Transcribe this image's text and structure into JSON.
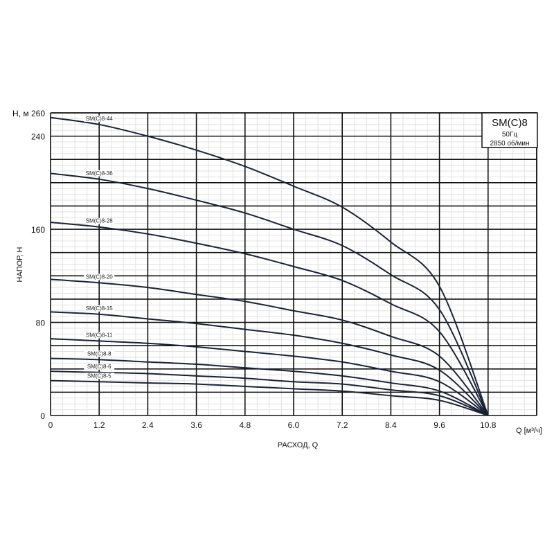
{
  "chart_data": {
    "type": "line",
    "title": "",
    "xlabel": "РАСХОД, Q",
    "xunit_label": "Q [м³/ч]",
    "ylabel": "НАПОР, Н",
    "yunit_label": "Н, м",
    "xlim": [
      0,
      12
    ],
    "ylim": [
      0,
      260
    ],
    "x_ticks": [
      "0",
      "1.2",
      "2.4",
      "3.6",
      "4.8",
      "6.0",
      "7.2",
      "8.4",
      "9.6",
      "10.8"
    ],
    "x_tick_values": [
      0,
      1.2,
      2.4,
      3.6,
      4.8,
      6.0,
      7.2,
      8.4,
      9.6,
      10.8
    ],
    "y_ticks": [
      "0",
      "80",
      "160",
      "240",
      "260"
    ],
    "y_tick_values": [
      0,
      80,
      160,
      240,
      260
    ],
    "grid": true,
    "line_color": "#1a2238",
    "legend_box": {
      "model": "SM(C)8",
      "frequency": "50Гц",
      "speed": "2850 об/мин",
      "placement": "top-right"
    },
    "x": [
      0,
      1.2,
      2.4,
      3.6,
      4.8,
      6.0,
      7.2,
      8.4,
      9.6,
      10.8
    ],
    "series": [
      {
        "name": "SM(C)8-44",
        "values": [
          256,
          250,
          240,
          228,
          214,
          197,
          179,
          149,
          111,
          0
        ]
      },
      {
        "name": "SM(C)8-36",
        "values": [
          208,
          203,
          195,
          185,
          174,
          160,
          146,
          121,
          91,
          0
        ]
      },
      {
        "name": "SM(C)8-28",
        "values": [
          166,
          162,
          156,
          148,
          139,
          128,
          116,
          96,
          72,
          0
        ]
      },
      {
        "name": "SM(C)8-20",
        "values": [
          117,
          114,
          110,
          104,
          98,
          90,
          82,
          68,
          51,
          0
        ]
      },
      {
        "name": "SM(C)8-15",
        "values": [
          89,
          87,
          83,
          79,
          74,
          69,
          62,
          52,
          39,
          0
        ]
      },
      {
        "name": "SM(C)8-11",
        "values": [
          66,
          64,
          62,
          59,
          55,
          51,
          46,
          38,
          29,
          0
        ]
      },
      {
        "name": "SM(C)8-8",
        "values": [
          49,
          48,
          46,
          44,
          41,
          38,
          34,
          28,
          21,
          0
        ]
      },
      {
        "name": "SM(C)8-6",
        "values": [
          38,
          37,
          36,
          34,
          32,
          29,
          27,
          22,
          17,
          0
        ]
      },
      {
        "name": "SM(C)8-5",
        "values": [
          30,
          29,
          28,
          27,
          25,
          23,
          21,
          17,
          13,
          0
        ]
      }
    ]
  }
}
